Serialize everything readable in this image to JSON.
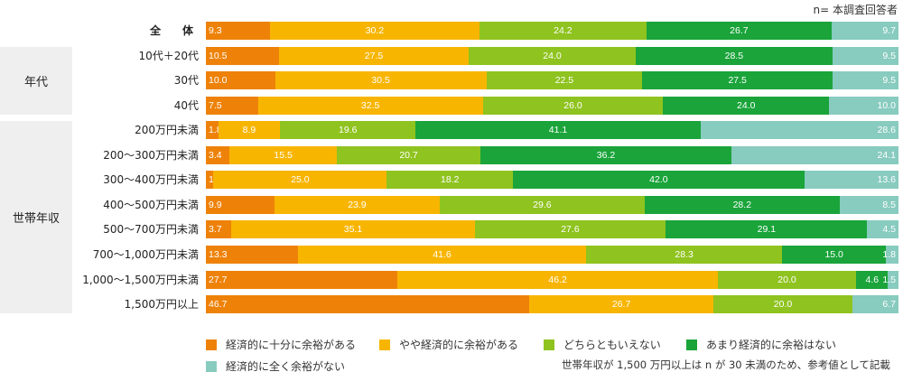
{
  "note": "n= 本調査回答者",
  "footnote": "世帯年収が 1,500 万円以上は n が 30 未満のため、参考値として記載",
  "groups": [
    {
      "label": "年代"
    },
    {
      "label": "世帯年収"
    }
  ],
  "chart_data": {
    "type": "bar",
    "orientation": "horizontal-stacked-100",
    "categories": [
      "全　体",
      "10代＋20代",
      "30代",
      "40代",
      "200万円未満",
      "200～300万円未満",
      "300～400万円未満",
      "400～500万円未満",
      "500～700万円未満",
      "700～1,000万円未満",
      "1,000～1,500万円未満",
      "1,500万円以上"
    ],
    "series": [
      {
        "name": "経済的に十分に余裕がある",
        "color": "#ee8209",
        "values": [
          9.3,
          10.5,
          10.0,
          7.5,
          1.8,
          3.4,
          1.1,
          9.9,
          3.7,
          13.3,
          27.7,
          46.7
        ]
      },
      {
        "name": "やや経済的に余裕がある",
        "color": "#f8b500",
        "values": [
          30.2,
          27.5,
          30.5,
          32.5,
          8.9,
          15.5,
          25.0,
          23.9,
          35.1,
          41.6,
          46.2,
          26.7
        ]
      },
      {
        "name": "どちらともいえない",
        "color": "#8fc31f",
        "values": [
          24.2,
          24.0,
          22.5,
          26.0,
          19.6,
          20.7,
          18.2,
          29.6,
          27.6,
          28.3,
          20.0,
          20.0
        ]
      },
      {
        "name": "あまり経済的に余裕はない",
        "color": "#1aa43a",
        "values": [
          26.7,
          28.5,
          27.5,
          24.0,
          41.1,
          36.2,
          42.0,
          28.2,
          29.1,
          15.0,
          4.6,
          0
        ]
      },
      {
        "name": "経済的に全く余裕がない",
        "color": "#88cbbf",
        "values": [
          9.7,
          9.5,
          9.5,
          10.0,
          28.6,
          24.1,
          13.6,
          8.5,
          4.5,
          1.8,
          1.5,
          6.7
        ]
      }
    ],
    "legend_position": "bottom",
    "grid": false
  }
}
